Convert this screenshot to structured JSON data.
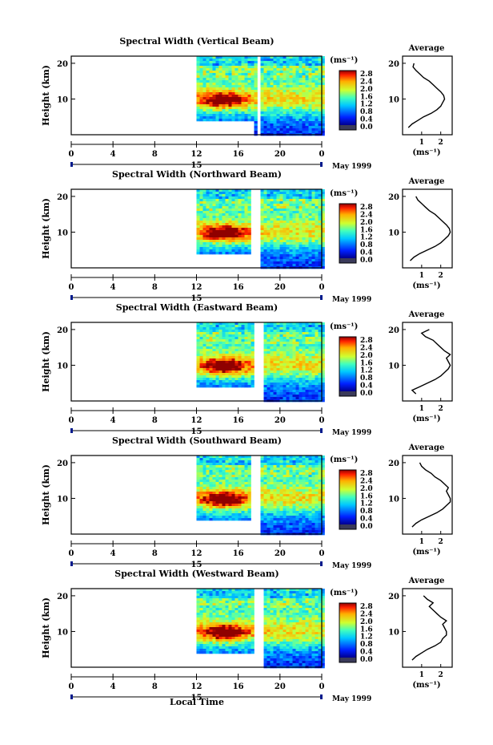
{
  "chart_data": [
    {
      "type": "heatmap",
      "title": "Spectral Width (Vertical Beam)",
      "ylabel": "Height (km)",
      "yticks": [
        "20",
        "10"
      ],
      "xticks": [
        "0",
        "4",
        "8",
        "12",
        "16",
        "20",
        "0"
      ],
      "xlim_hours": [
        0,
        24
      ],
      "data_start_hour": 12,
      "gap_hours": [
        17.6,
        18.0
      ],
      "core_center_hour": 14.5,
      "day_label": "15",
      "month_label": "May 1999",
      "colorbar": {
        "unit": "(ms⁻¹)",
        "ticks": [
          "2.8",
          "2.4",
          "2.0",
          "1.6",
          "1.2",
          "0.8",
          "0.4",
          "0.0"
        ]
      },
      "average": {
        "title": "Average",
        "xlabel": "(ms⁻¹)",
        "xticks": [
          "1",
          "2"
        ],
        "yticks": [
          "20",
          "10"
        ],
        "points": [
          [
            0.3,
            2
          ],
          [
            0.5,
            3
          ],
          [
            0.8,
            4
          ],
          [
            1.1,
            5
          ],
          [
            1.5,
            6
          ],
          [
            1.8,
            7
          ],
          [
            2.0,
            8
          ],
          [
            2.1,
            9
          ],
          [
            2.2,
            10
          ],
          [
            2.15,
            11
          ],
          [
            2.0,
            12
          ],
          [
            1.8,
            13
          ],
          [
            1.6,
            14
          ],
          [
            1.4,
            15
          ],
          [
            1.1,
            16
          ],
          [
            0.9,
            17
          ],
          [
            0.7,
            18
          ],
          [
            0.55,
            19
          ],
          [
            0.6,
            20
          ]
        ]
      }
    },
    {
      "type": "heatmap",
      "title": "Spectral Width (Northward Beam)",
      "ylabel": "Height (km)",
      "yticks": [
        "20",
        "10"
      ],
      "xticks": [
        "0",
        "4",
        "8",
        "12",
        "16",
        "20",
        "0"
      ],
      "xlim_hours": [
        0,
        24
      ],
      "data_start_hour": 12,
      "gap_hours": [
        17.0,
        18.0
      ],
      "core_center_hour": 14.5,
      "day_label": "15",
      "month_label": "May 1999",
      "colorbar": {
        "unit": "(ms⁻¹)",
        "ticks": [
          "2.8",
          "2.4",
          "2.0",
          "1.6",
          "1.2",
          "0.8",
          "0.4",
          "0.0"
        ]
      },
      "average": {
        "title": "Average",
        "xlabel": "(ms⁻¹)",
        "xticks": [
          "1",
          "2"
        ],
        "yticks": [
          "20",
          "10"
        ],
        "points": [
          [
            0.4,
            2
          ],
          [
            0.6,
            3
          ],
          [
            0.9,
            4
          ],
          [
            1.3,
            5
          ],
          [
            1.7,
            6
          ],
          [
            2.0,
            7
          ],
          [
            2.2,
            8
          ],
          [
            2.4,
            9
          ],
          [
            2.5,
            10
          ],
          [
            2.45,
            11
          ],
          [
            2.3,
            12
          ],
          [
            2.1,
            13
          ],
          [
            1.9,
            14
          ],
          [
            1.7,
            15
          ],
          [
            1.4,
            16
          ],
          [
            1.2,
            17
          ],
          [
            1.0,
            18
          ],
          [
            0.8,
            19
          ],
          [
            0.7,
            20
          ]
        ]
      }
    },
    {
      "type": "heatmap",
      "title": "Spectral Width (Eastward Beam)",
      "ylabel": "Height (km)",
      "yticks": [
        "20",
        "10"
      ],
      "xticks": [
        "0",
        "4",
        "8",
        "12",
        "16",
        "20",
        "0"
      ],
      "xlim_hours": [
        0,
        24
      ],
      "data_start_hour": 12,
      "gap_hours": [
        17.4,
        18.3
      ],
      "core_center_hour": 14.5,
      "day_label": "15",
      "month_label": "May 1999",
      "colorbar": {
        "unit": "(ms⁻¹)",
        "ticks": [
          "2.8",
          "2.4",
          "2.0",
          "1.6",
          "1.2",
          "0.8",
          "0.4",
          "0.0"
        ]
      },
      "average": {
        "title": "Average",
        "xlabel": "(ms⁻¹)",
        "xticks": [
          "1",
          "2"
        ],
        "yticks": [
          "20",
          "10"
        ],
        "points": [
          [
            0.7,
            2
          ],
          [
            0.5,
            3
          ],
          [
            0.9,
            4
          ],
          [
            1.3,
            5
          ],
          [
            1.7,
            6
          ],
          [
            2.0,
            7
          ],
          [
            2.2,
            8
          ],
          [
            2.4,
            9
          ],
          [
            2.5,
            10
          ],
          [
            2.4,
            11
          ],
          [
            2.3,
            12
          ],
          [
            2.5,
            13
          ],
          [
            2.2,
            14
          ],
          [
            2.0,
            15
          ],
          [
            1.8,
            16
          ],
          [
            1.6,
            17
          ],
          [
            1.2,
            18
          ],
          [
            1.0,
            19
          ],
          [
            1.4,
            20
          ]
        ]
      }
    },
    {
      "type": "heatmap",
      "title": "Spectral Width (Southward Beam)",
      "ylabel": "Height (km)",
      "yticks": [
        "20",
        "10"
      ],
      "xticks": [
        "0",
        "4",
        "8",
        "12",
        "16",
        "20",
        "0"
      ],
      "xlim_hours": [
        0,
        24
      ],
      "data_start_hour": 12,
      "gap_hours": [
        17.2,
        18.0
      ],
      "core_center_hour": 14.5,
      "day_label": "15",
      "month_label": "May 1999",
      "colorbar": {
        "unit": "(ms⁻¹)",
        "ticks": [
          "2.8",
          "2.4",
          "2.0",
          "1.6",
          "1.2",
          "0.8",
          "0.4",
          "0.0"
        ]
      },
      "average": {
        "title": "Average",
        "xlabel": "(ms⁻¹)",
        "xticks": [
          "1",
          "2"
        ],
        "yticks": [
          "20",
          "10"
        ],
        "points": [
          [
            0.5,
            2
          ],
          [
            0.7,
            3
          ],
          [
            1.0,
            4
          ],
          [
            1.4,
            5
          ],
          [
            1.8,
            6
          ],
          [
            2.1,
            7
          ],
          [
            2.3,
            8
          ],
          [
            2.5,
            9
          ],
          [
            2.5,
            10
          ],
          [
            2.4,
            11
          ],
          [
            2.3,
            12
          ],
          [
            2.4,
            13
          ],
          [
            2.2,
            14
          ],
          [
            2.0,
            15
          ],
          [
            1.7,
            16
          ],
          [
            1.5,
            17
          ],
          [
            1.2,
            18
          ],
          [
            1.0,
            19
          ],
          [
            0.9,
            20
          ]
        ]
      }
    },
    {
      "type": "heatmap",
      "title": "Spectral Width (Westward Beam)",
      "ylabel": "Height (km)",
      "yticks": [
        "20",
        "10"
      ],
      "xticks": [
        "0",
        "4",
        "8",
        "12",
        "16",
        "20",
        "0"
      ],
      "xlim_hours": [
        0,
        24
      ],
      "data_start_hour": 12,
      "gap_hours": [
        17.3,
        18.3
      ],
      "core_center_hour": 14.5,
      "day_label": "15",
      "month_label": "May 1999",
      "colorbar": {
        "unit": "(ms⁻¹)",
        "ticks": [
          "2.8",
          "2.4",
          "2.0",
          "1.6",
          "1.2",
          "0.8",
          "0.4",
          "0.0"
        ]
      },
      "average": {
        "title": "Average",
        "xlabel": "(ms⁻¹)",
        "xticks": [
          "1",
          "2"
        ],
        "yticks": [
          "20",
          "10"
        ],
        "points": [
          [
            0.5,
            2
          ],
          [
            0.7,
            3
          ],
          [
            1.0,
            4
          ],
          [
            1.3,
            5
          ],
          [
            1.7,
            6
          ],
          [
            2.0,
            7
          ],
          [
            2.1,
            8
          ],
          [
            2.3,
            9
          ],
          [
            2.3,
            10
          ],
          [
            2.2,
            11
          ],
          [
            2.1,
            12
          ],
          [
            2.3,
            13
          ],
          [
            2.0,
            14
          ],
          [
            1.8,
            15
          ],
          [
            1.6,
            16
          ],
          [
            1.4,
            17
          ],
          [
            1.6,
            18
          ],
          [
            1.3,
            19
          ],
          [
            1.1,
            20
          ]
        ]
      }
    }
  ],
  "xlabel": "Local Time"
}
